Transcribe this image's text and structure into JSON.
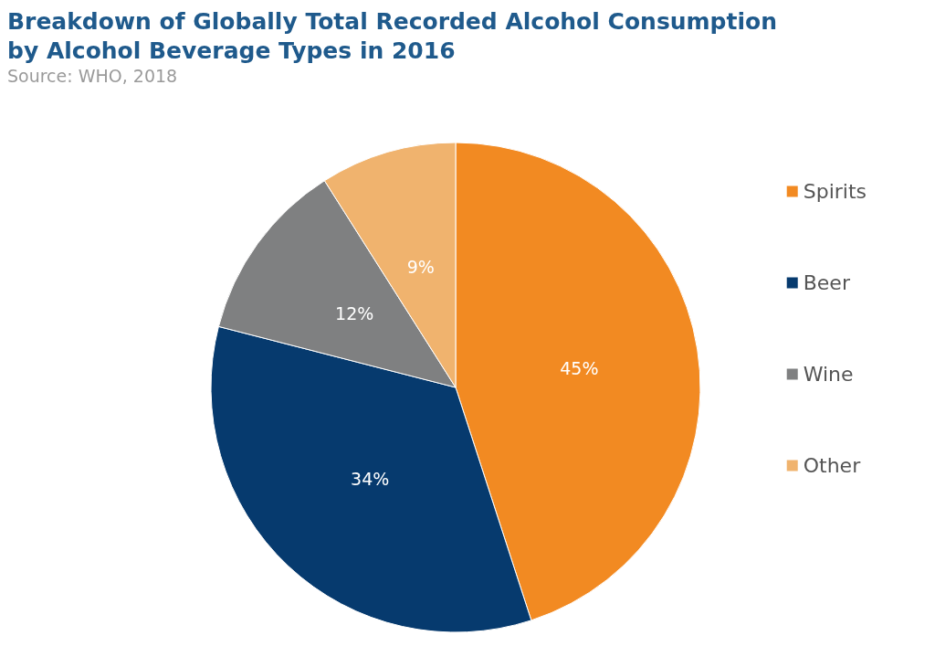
{
  "chart_data": {
    "type": "pie",
    "title": "Breakdown of Globally Total Recorded Alcohol Consumption\nby Alcohol Beverage Types in 2016",
    "annotations": [
      "Source: WHO, 2018"
    ],
    "categories": [
      "Spirits",
      "Beer",
      "Wine",
      "Other"
    ],
    "values": [
      45,
      34,
      12,
      9
    ],
    "value_labels": [
      "45%",
      "34%",
      "12%",
      "9%"
    ],
    "colors": [
      "#f28a22",
      "#063a6e",
      "#7f8081",
      "#f0b36e"
    ],
    "legend": "right"
  }
}
